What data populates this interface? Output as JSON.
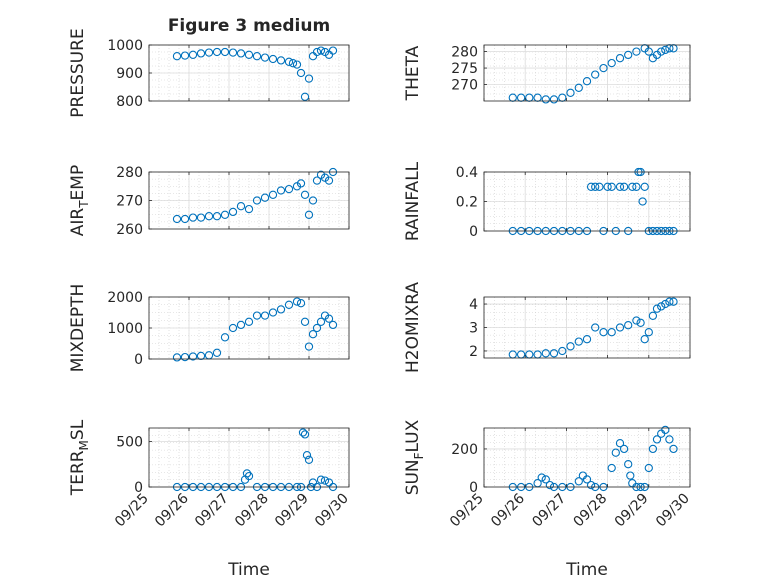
{
  "figure": {
    "title": "Figure 3 medium",
    "marker_color": "#0072BD",
    "axis_color": "#262626",
    "grid_color": "#dcdcdc"
  },
  "chart_data": [
    {
      "type": "scatter",
      "title": "Figure 3 medium",
      "ylabel": "PRESSURE",
      "xlabel": "",
      "ylim": [
        800,
        1000
      ],
      "yticks": [
        800,
        900,
        1000
      ],
      "xlim": [
        0,
        5
      ],
      "xticks": [
        0,
        1,
        2,
        3,
        4,
        5
      ],
      "xticklabels": [
        "09/25",
        "09/26",
        "09/27",
        "09/28",
        "09/29",
        "09/30"
      ],
      "show_xticklabels": false,
      "grid": "on (major + minor)",
      "series": [
        {
          "x": [
            0.7,
            0.9,
            1.1,
            1.3,
            1.5,
            1.7,
            1.9,
            2.1,
            2.3,
            2.5,
            2.7,
            2.9,
            3.1,
            3.3,
            3.5,
            3.6,
            3.7,
            3.8,
            3.9,
            4.0,
            4.1,
            4.2,
            4.3,
            4.4,
            4.5,
            4.6
          ],
          "y": [
            960,
            962,
            965,
            970,
            973,
            975,
            975,
            973,
            970,
            965,
            960,
            955,
            950,
            945,
            940,
            935,
            930,
            900,
            815,
            880,
            960,
            975,
            980,
            975,
            965,
            980
          ]
        }
      ]
    },
    {
      "type": "scatter",
      "title": "",
      "ylabel": "THETA",
      "xlabel": "",
      "ylim": [
        265,
        282
      ],
      "yticks": [
        270,
        275,
        280
      ],
      "xlim": [
        0,
        5
      ],
      "xticks": [
        0,
        1,
        2,
        3,
        4,
        5
      ],
      "xticklabels": [
        "09/25",
        "09/26",
        "09/27",
        "09/28",
        "09/29",
        "09/30"
      ],
      "show_xticklabels": false,
      "grid": "on (major + minor)",
      "series": [
        {
          "x": [
            0.7,
            0.9,
            1.1,
            1.3,
            1.5,
            1.7,
            1.9,
            2.1,
            2.3,
            2.5,
            2.7,
            2.9,
            3.1,
            3.3,
            3.5,
            3.7,
            3.9,
            4.0,
            4.1,
            4.2,
            4.3,
            4.4,
            4.5,
            4.6
          ],
          "y": [
            266,
            266,
            266,
            266,
            265.5,
            265.5,
            266,
            267.5,
            269,
            271,
            273,
            275,
            276.5,
            278,
            279,
            280,
            281,
            280,
            278,
            279,
            280,
            280.5,
            281,
            281
          ]
        }
      ]
    },
    {
      "type": "scatter",
      "title": "",
      "ylabel": "AIR_TEMP",
      "xlabel": "",
      "ylim": [
        260,
        280
      ],
      "yticks": [
        260,
        270,
        280
      ],
      "xlim": [
        0,
        5
      ],
      "xticks": [
        0,
        1,
        2,
        3,
        4,
        5
      ],
      "xticklabels": [
        "09/25",
        "09/26",
        "09/27",
        "09/28",
        "09/29",
        "09/30"
      ],
      "show_xticklabels": false,
      "grid": "on (major + minor)",
      "series": [
        {
          "x": [
            0.7,
            0.9,
            1.1,
            1.3,
            1.5,
            1.7,
            1.9,
            2.1,
            2.3,
            2.5,
            2.7,
            2.9,
            3.1,
            3.3,
            3.5,
            3.7,
            3.8,
            3.9,
            4.0,
            4.1,
            4.2,
            4.3,
            4.4,
            4.5,
            4.6
          ],
          "y": [
            263.5,
            263.5,
            264,
            264,
            264.5,
            264.5,
            265,
            266,
            268,
            267,
            270,
            271,
            272,
            273.5,
            274,
            275,
            276,
            272,
            265,
            270,
            277,
            279,
            278,
            277,
            280
          ]
        }
      ]
    },
    {
      "type": "scatter",
      "title": "",
      "ylabel": "RAINFALL",
      "xlabel": "",
      "ylim": [
        0,
        0.4
      ],
      "yticks": [
        0,
        0.2,
        0.4
      ],
      "xlim": [
        0,
        5
      ],
      "xticks": [
        0,
        1,
        2,
        3,
        4,
        5
      ],
      "xticklabels": [
        "09/25",
        "09/26",
        "09/27",
        "09/28",
        "09/29",
        "09/30"
      ],
      "show_xticklabels": false,
      "grid": "on (major + minor)",
      "series": [
        {
          "x": [
            0.7,
            0.9,
            1.1,
            1.3,
            1.5,
            1.7,
            1.9,
            2.1,
            2.3,
            2.5,
            2.6,
            2.7,
            2.8,
            2.9,
            3.0,
            3.1,
            3.2,
            3.3,
            3.4,
            3.5,
            3.6,
            3.7,
            3.75,
            3.8,
            3.85,
            3.9,
            4.0,
            4.1,
            4.2,
            4.3,
            4.4,
            4.5,
            4.6
          ],
          "y": [
            0,
            0,
            0,
            0,
            0,
            0,
            0,
            0,
            0,
            0,
            0.3,
            0.3,
            0.3,
            0,
            0.3,
            0.3,
            0,
            0.3,
            0.3,
            0,
            0.3,
            0.3,
            0.4,
            0.4,
            0.2,
            0.3,
            0,
            0,
            0,
            0,
            0,
            0,
            0
          ]
        }
      ]
    },
    {
      "type": "scatter",
      "title": "",
      "ylabel": "MIXDEPTH",
      "xlabel": "",
      "ylim": [
        0,
        2000
      ],
      "yticks": [
        0,
        1000,
        2000
      ],
      "xlim": [
        0,
        5
      ],
      "xticks": [
        0,
        1,
        2,
        3,
        4,
        5
      ],
      "xticklabels": [
        "09/25",
        "09/26",
        "09/27",
        "09/28",
        "09/29",
        "09/30"
      ],
      "show_xticklabels": false,
      "grid": "on (major + minor)",
      "series": [
        {
          "x": [
            0.7,
            0.9,
            1.1,
            1.3,
            1.5,
            1.7,
            1.9,
            2.1,
            2.3,
            2.5,
            2.7,
            2.9,
            3.1,
            3.3,
            3.5,
            3.7,
            3.8,
            3.9,
            4.0,
            4.1,
            4.2,
            4.3,
            4.4,
            4.5,
            4.6
          ],
          "y": [
            50,
            60,
            80,
            100,
            120,
            200,
            700,
            1000,
            1100,
            1200,
            1400,
            1400,
            1500,
            1600,
            1750,
            1850,
            1800,
            1200,
            400,
            800,
            1000,
            1200,
            1400,
            1300,
            1100
          ]
        }
      ]
    },
    {
      "type": "scatter",
      "title": "",
      "ylabel": "H2OMIXRA",
      "xlabel": "",
      "ylim": [
        1.7,
        4.3
      ],
      "yticks": [
        2,
        3,
        4
      ],
      "xlim": [
        0,
        5
      ],
      "xticks": [
        0,
        1,
        2,
        3,
        4,
        5
      ],
      "xticklabels": [
        "09/25",
        "09/26",
        "09/27",
        "09/28",
        "09/29",
        "09/30"
      ],
      "show_xticklabels": false,
      "grid": "on (major + minor)",
      "series": [
        {
          "x": [
            0.7,
            0.9,
            1.1,
            1.3,
            1.5,
            1.7,
            1.9,
            2.1,
            2.3,
            2.5,
            2.7,
            2.9,
            3.1,
            3.3,
            3.5,
            3.7,
            3.8,
            3.9,
            4.0,
            4.1,
            4.2,
            4.3,
            4.4,
            4.5,
            4.6
          ],
          "y": [
            1.85,
            1.85,
            1.85,
            1.85,
            1.9,
            1.9,
            2.0,
            2.2,
            2.4,
            2.5,
            3.0,
            2.8,
            2.8,
            3.0,
            3.1,
            3.3,
            3.2,
            2.5,
            2.8,
            3.5,
            3.8,
            3.9,
            4.0,
            4.1,
            4.1
          ]
        }
      ]
    },
    {
      "type": "scatter",
      "title": "",
      "ylabel": "TERR_MSL",
      "xlabel": "Time",
      "ylim": [
        0,
        650
      ],
      "yticks": [
        0,
        500
      ],
      "xlim": [
        0,
        5
      ],
      "xticks": [
        0,
        1,
        2,
        3,
        4,
        5
      ],
      "xticklabels": [
        "09/25",
        "09/26",
        "09/27",
        "09/28",
        "09/29",
        "09/30"
      ],
      "show_xticklabels": true,
      "grid": "on (major + minor)",
      "series": [
        {
          "x": [
            0.7,
            0.9,
            1.1,
            1.3,
            1.5,
            1.7,
            1.9,
            2.1,
            2.3,
            2.4,
            2.45,
            2.5,
            2.7,
            2.9,
            3.1,
            3.3,
            3.5,
            3.7,
            3.8,
            3.85,
            3.9,
            3.95,
            4.0,
            4.05,
            4.1,
            4.2,
            4.3,
            4.4,
            4.5,
            4.6
          ],
          "y": [
            0,
            0,
            0,
            0,
            0,
            0,
            0,
            0,
            0,
            80,
            150,
            120,
            0,
            0,
            0,
            0,
            0,
            0,
            0,
            600,
            580,
            350,
            300,
            0,
            50,
            0,
            80,
            70,
            50,
            0
          ]
        }
      ]
    },
    {
      "type": "scatter",
      "title": "",
      "ylabel": "SUN_FLUX",
      "xlabel": "Time",
      "ylim": [
        0,
        310
      ],
      "yticks": [
        0,
        200
      ],
      "xlim": [
        0,
        5
      ],
      "xticks": [
        0,
        1,
        2,
        3,
        4,
        5
      ],
      "xticklabels": [
        "09/25",
        "09/26",
        "09/27",
        "09/28",
        "09/29",
        "09/30"
      ],
      "show_xticklabels": true,
      "grid": "on (major + minor)",
      "series": [
        {
          "x": [
            0.7,
            0.9,
            1.1,
            1.3,
            1.4,
            1.5,
            1.6,
            1.7,
            1.9,
            2.1,
            2.3,
            2.4,
            2.5,
            2.6,
            2.7,
            2.9,
            3.1,
            3.2,
            3.3,
            3.4,
            3.5,
            3.55,
            3.6,
            3.7,
            3.8,
            3.9,
            4.0,
            4.1,
            4.2,
            4.3,
            4.4,
            4.5,
            4.6
          ],
          "y": [
            0,
            0,
            0,
            20,
            50,
            40,
            10,
            0,
            0,
            0,
            30,
            60,
            40,
            10,
            0,
            0,
            100,
            180,
            230,
            200,
            120,
            60,
            20,
            0,
            0,
            0,
            100,
            200,
            250,
            280,
            300,
            250,
            200
          ]
        }
      ]
    }
  ]
}
